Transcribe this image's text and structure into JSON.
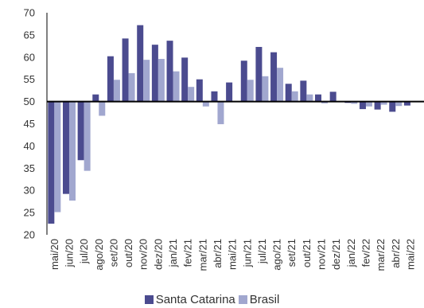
{
  "chart_data": {
    "type": "bar",
    "title": "",
    "xlabel": "",
    "ylabel": "",
    "ylim": [
      20,
      70
    ],
    "baseline": 50,
    "yticks": [
      20,
      25,
      30,
      35,
      40,
      45,
      50,
      55,
      60,
      65,
      70
    ],
    "categories": [
      "mai/20",
      "jun/20",
      "jul/20",
      "ago/20",
      "set/20",
      "out/20",
      "nov/20",
      "dez/20",
      "jan/21",
      "fev/21",
      "mar/21",
      "abr/21",
      "mai/21",
      "jun/21",
      "jul/21",
      "ago/21",
      "set/21",
      "out/21",
      "nov/21",
      "dez/21",
      "jan/22",
      "fev/22",
      "mar/22",
      "abr/22",
      "mai/22"
    ],
    "series": [
      {
        "name": "Santa Catarina",
        "color": "#4b4b8f",
        "values": [
          22.5,
          29.2,
          36.8,
          51.6,
          60.2,
          64.2,
          67.2,
          62.8,
          63.7,
          59.9,
          55.0,
          52.3,
          54.3,
          59.2,
          62.3,
          61.1,
          54.0,
          54.7,
          51.6,
          52.2,
          49.7,
          48.3,
          48.2,
          47.7,
          49.1
        ]
      },
      {
        "name": "Brasil",
        "color": "#a1a7cf",
        "values": [
          25.1,
          27.7,
          34.4,
          46.8,
          54.9,
          56.4,
          59.4,
          59.6,
          56.8,
          53.3,
          48.9,
          44.9,
          null,
          54.9,
          55.7,
          57.6,
          52.3,
          51.6,
          49.6,
          null,
          49.5,
          48.9,
          49.3,
          49.0,
          null
        ]
      }
    ],
    "legend_position": "bottom"
  }
}
